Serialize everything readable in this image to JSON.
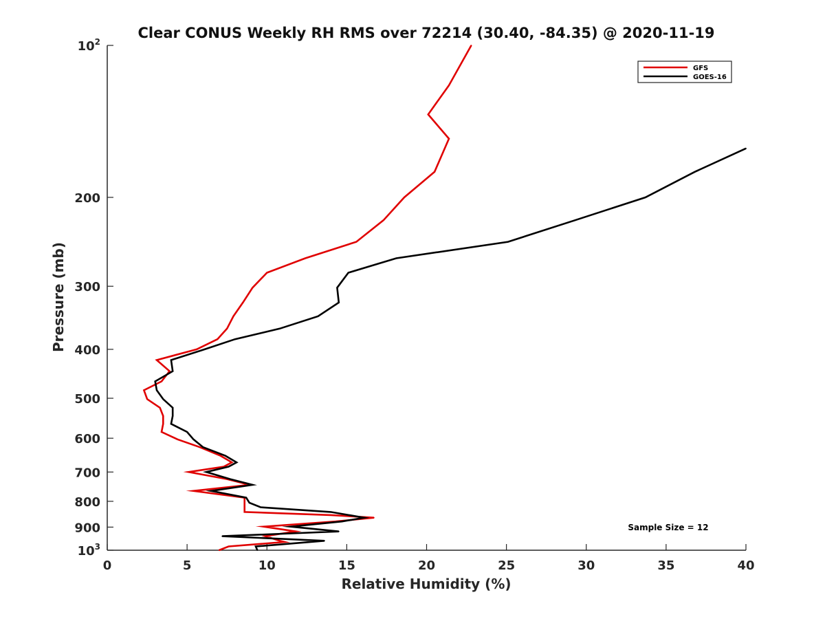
{
  "chart_data": {
    "type": "line",
    "title": "Clear CONUS Weekly RH RMS over 72214 (30.40, -84.35) @ 2020-11-19",
    "xlabel": "Relative Humidity (%)",
    "ylabel": "Pressure (mb)",
    "xlim": [
      0,
      40
    ],
    "ylim": [
      100,
      1000
    ],
    "yscale": "log",
    "y_reversed": true,
    "grid": false,
    "x_ticks": [
      0,
      5,
      10,
      15,
      20,
      25,
      30,
      35,
      40
    ],
    "x_tick_labels": [
      "0",
      "5",
      "10",
      "15",
      "20",
      "25",
      "30",
      "35",
      "40"
    ],
    "y_ticks": [
      {
        "value": 100,
        "base": "10",
        "exp": "2"
      },
      {
        "value": 200,
        "label": "200"
      },
      {
        "value": 300,
        "label": "300"
      },
      {
        "value": 400,
        "label": "400"
      },
      {
        "value": 500,
        "label": "500"
      },
      {
        "value": 600,
        "label": "600"
      },
      {
        "value": 700,
        "label": "700"
      },
      {
        "value": 800,
        "label": "800"
      },
      {
        "value": 900,
        "label": "900"
      },
      {
        "value": 1000,
        "base": "10",
        "exp": "3"
      }
    ],
    "legend_position": "top-right",
    "annotation": "Sample Size = 12",
    "series": [
      {
        "name": "GFS",
        "color": "#e00000",
        "points": [
          [
            22.8,
            100
          ],
          [
            21.4,
            120
          ],
          [
            20.1,
            137
          ],
          [
            21.4,
            153
          ],
          [
            20.5,
            178
          ],
          [
            18.6,
            200
          ],
          [
            17.3,
            222
          ],
          [
            15.6,
            245
          ],
          [
            12.4,
            264
          ],
          [
            10.0,
            282
          ],
          [
            9.1,
            302
          ],
          [
            8.5,
            323
          ],
          [
            7.9,
            344
          ],
          [
            7.5,
            364
          ],
          [
            6.9,
            382
          ],
          [
            5.6,
            400
          ],
          [
            3.1,
            420
          ],
          [
            3.9,
            442
          ],
          [
            3.4,
            463
          ],
          [
            2.3,
            482
          ],
          [
            2.5,
            502
          ],
          [
            3.3,
            522
          ],
          [
            3.5,
            542
          ],
          [
            3.5,
            562
          ],
          [
            3.4,
            583
          ],
          [
            4.4,
            603
          ],
          [
            5.8,
            625
          ],
          [
            7.1,
            650
          ],
          [
            7.8,
            670
          ],
          [
            7.3,
            683
          ],
          [
            5.1,
            700
          ],
          [
            7.5,
            723
          ],
          [
            8.9,
            742
          ],
          [
            5.4,
            763
          ],
          [
            8.6,
            787
          ],
          [
            8.6,
            805
          ],
          [
            8.6,
            822
          ],
          [
            8.6,
            840
          ],
          [
            14.0,
            852
          ],
          [
            16.7,
            862
          ],
          [
            14.3,
            877
          ],
          [
            9.8,
            898
          ],
          [
            11.8,
            918
          ],
          [
            9.9,
            938
          ],
          [
            10.8,
            958
          ],
          [
            11.1,
            963
          ],
          [
            7.6,
            983
          ],
          [
            7.0,
            1000
          ]
        ]
      },
      {
        "name": "GOES-16",
        "color": "#000000",
        "points": [
          [
            40.0,
            160
          ],
          [
            36.8,
            178
          ],
          [
            33.7,
            200
          ],
          [
            29.3,
            222
          ],
          [
            25.1,
            245
          ],
          [
            18.1,
            264
          ],
          [
            15.1,
            282
          ],
          [
            14.4,
            302
          ],
          [
            14.5,
            323
          ],
          [
            13.2,
            344
          ],
          [
            10.8,
            364
          ],
          [
            8.0,
            382
          ],
          [
            6.1,
            400
          ],
          [
            4.0,
            420
          ],
          [
            4.1,
            442
          ],
          [
            3.0,
            463
          ],
          [
            3.1,
            482
          ],
          [
            3.5,
            502
          ],
          [
            4.1,
            522
          ],
          [
            4.1,
            542
          ],
          [
            4.0,
            562
          ],
          [
            5.0,
            583
          ],
          [
            5.4,
            603
          ],
          [
            6.0,
            625
          ],
          [
            7.4,
            650
          ],
          [
            8.1,
            670
          ],
          [
            7.6,
            683
          ],
          [
            6.2,
            700
          ],
          [
            7.7,
            723
          ],
          [
            9.1,
            742
          ],
          [
            6.5,
            763
          ],
          [
            8.7,
            787
          ],
          [
            8.9,
            805
          ],
          [
            9.6,
            822
          ],
          [
            14.0,
            840
          ],
          [
            16.1,
            862
          ],
          [
            14.7,
            877
          ],
          [
            11.5,
            898
          ],
          [
            14.5,
            918
          ],
          [
            7.2,
            938
          ],
          [
            13.6,
            958
          ],
          [
            9.3,
            983
          ],
          [
            9.4,
            1000
          ]
        ]
      }
    ]
  }
}
